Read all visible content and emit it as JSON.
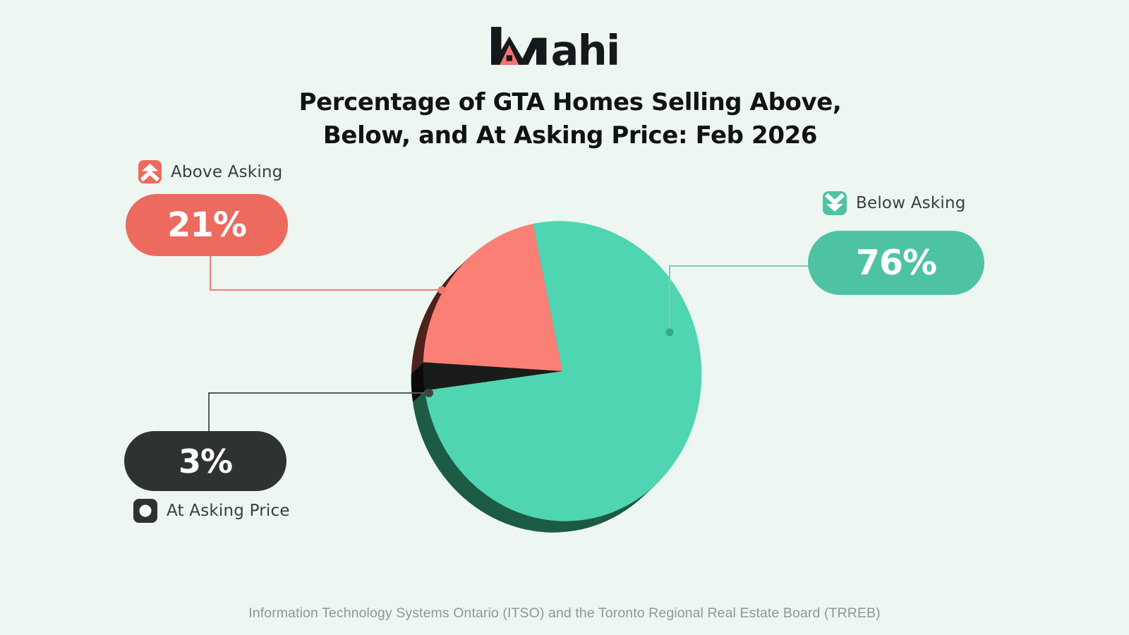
{
  "brand": {
    "name": "Wahi",
    "wordmark_rest": "ahi"
  },
  "title": {
    "line1": "Percentage of GTA Homes Selling Above,",
    "line2": "Below, and At Asking Price: Feb 2026"
  },
  "legend": {
    "above": {
      "label": "Above Asking",
      "value": "21%",
      "icon": "double-chevron-up"
    },
    "below": {
      "label": "Below Asking",
      "value": "76%",
      "icon": "double-chevron-down"
    },
    "at": {
      "label": "At Asking Price",
      "value": "3%",
      "icon": "circle"
    }
  },
  "footer": {
    "source": "Information Technology Systems Ontario (ITSO) and the Toronto Regional Real Estate Board (TRREB)"
  },
  "colors": {
    "background": "#EDF6F0",
    "above_accent": "#ED6A5F",
    "below_accent": "#4EC3A4",
    "at_accent": "#2E3331",
    "title_text": "#0F1311",
    "footer_text": "#8C9A93"
  },
  "chart_data": {
    "type": "pie",
    "title": "Percentage of GTA Homes Selling Above, Below, and At Asking Price: Feb 2026",
    "unit": "%",
    "style": "3d-extruded",
    "direction": "clockwise",
    "start_angle_deg": -11.6,
    "legend_position": "sides",
    "slices": [
      {
        "label": "Below Asking",
        "value": 76,
        "color": "#4FD5B1",
        "depth_color": "#1D5B45"
      },
      {
        "label": "At Asking Price",
        "value": 3,
        "color": "#1A1C1A",
        "depth_color": "#0A0B0A"
      },
      {
        "label": "Above Asking",
        "value": 21,
        "color": "#FA8076",
        "depth_color": "#4E231E"
      }
    ]
  }
}
